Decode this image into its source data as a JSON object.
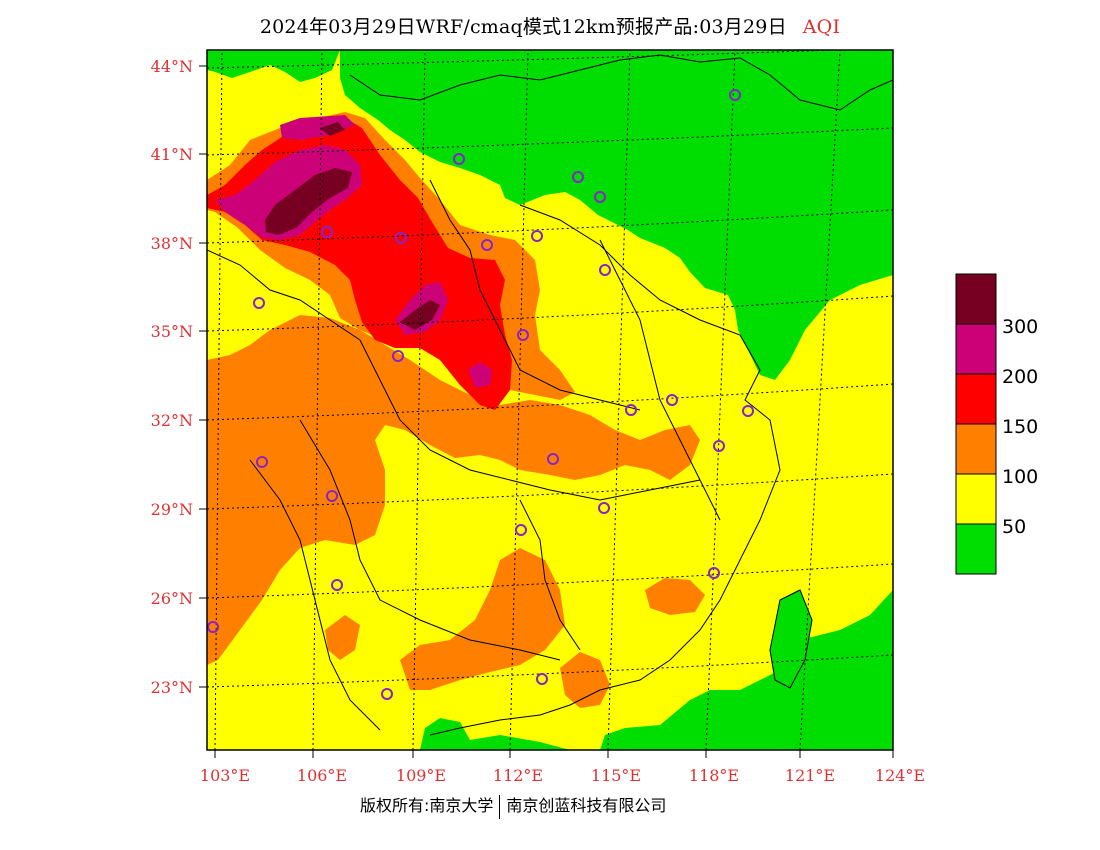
{
  "title": {
    "text": "2024年03月29日WRF/cmaq模式12km预报产品:03月29日",
    "variable": "AQI"
  },
  "footer": {
    "left": "版权所有:南京大学",
    "right": "南京创蓝科技有限公司"
  },
  "colors": {
    "band_0_50": "#00dd00",
    "band_50_100": "#ffff00",
    "band_100_150": "#ff8000",
    "band_150_200": "#ff0000",
    "band_200_300": "#cc0077",
    "band_300_plus": "#770022",
    "axis_label": "#e03030",
    "site_marker": "#8822cc"
  },
  "map": {
    "lat_labels": [
      "44°N",
      "41°N",
      "38°N",
      "35°N",
      "32°N",
      "29°N",
      "26°N",
      "23°N"
    ],
    "lon_labels": [
      "103°E",
      "106°E",
      "109°E",
      "112°E",
      "115°E",
      "118°E",
      "121°E",
      "124°E"
    ]
  },
  "legend": {
    "labels": [
      "300",
      "200",
      "150",
      "100",
      "50"
    ],
    "colors": [
      "#770022",
      "#cc0077",
      "#ff0000",
      "#ff8000",
      "#ffff00",
      "#00dd00"
    ]
  }
}
